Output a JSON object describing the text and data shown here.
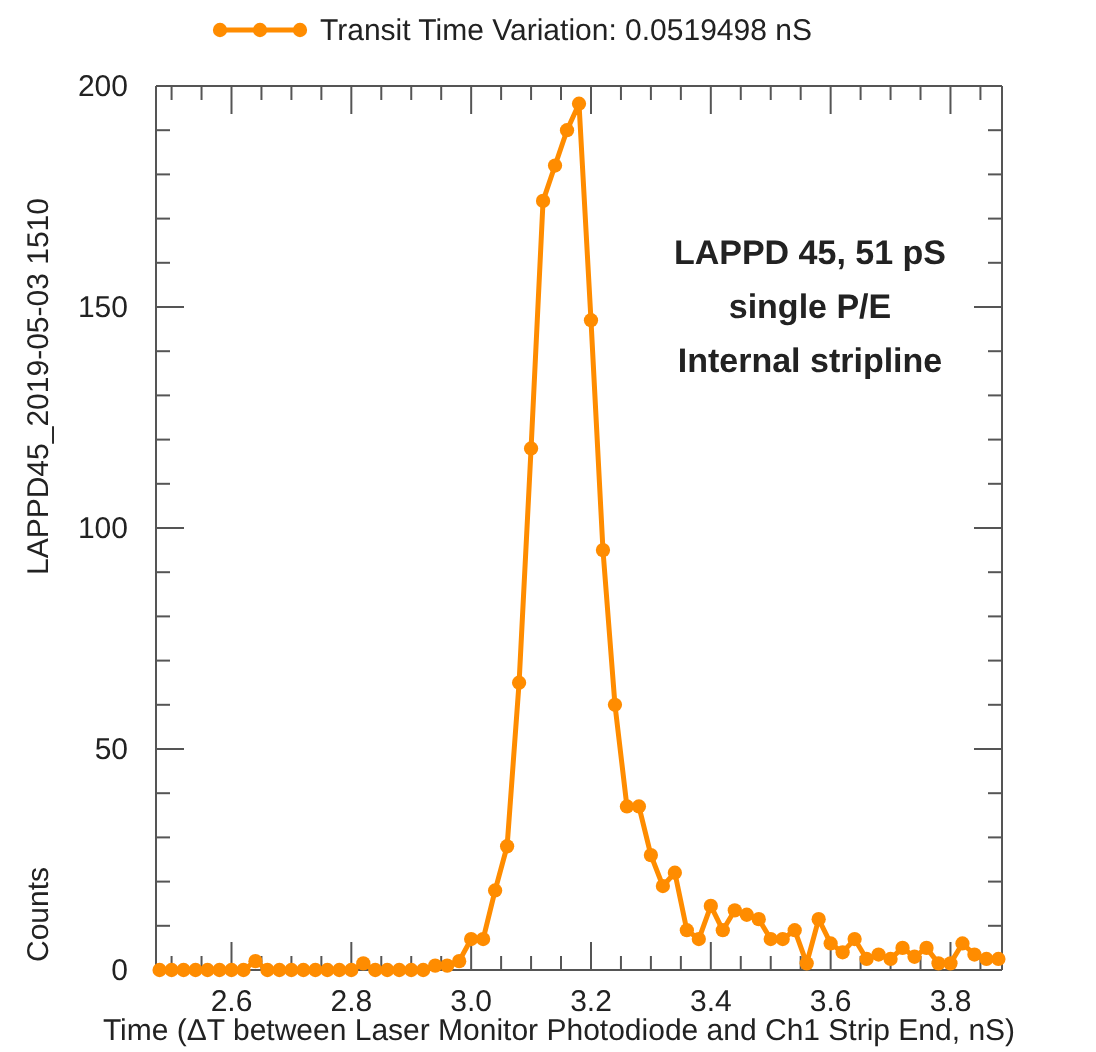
{
  "chart_data": {
    "type": "line",
    "xlabel": "Time (ΔT between Laser Monitor Photodiode and Ch1 Strip End, nS)",
    "ylabel": "Counts",
    "annotations": [
      "LAPPD45_2019-05-03  1510",
      "LAPPD 45, 51 pS\nsingle P/E\nInternal stripline"
    ],
    "x": [
      2.48,
      2.5,
      2.52,
      2.54,
      2.56,
      2.58,
      2.6,
      2.62,
      2.64,
      2.66,
      2.68,
      2.7,
      2.72,
      2.74,
      2.76,
      2.78,
      2.8,
      2.82,
      2.84,
      2.86,
      2.88,
      2.9,
      2.92,
      2.94,
      2.96,
      2.98,
      3.0,
      3.02,
      3.04,
      3.06,
      3.08,
      3.1,
      3.12,
      3.14,
      3.16,
      3.18,
      3.2,
      3.22,
      3.24,
      3.26,
      3.28,
      3.3,
      3.32,
      3.34,
      3.36,
      3.38,
      3.4,
      3.42,
      3.44,
      3.46,
      3.48,
      3.5,
      3.52,
      3.54,
      3.56,
      3.58,
      3.6,
      3.62,
      3.64,
      3.66,
      3.68,
      3.7,
      3.72,
      3.74,
      3.76,
      3.78,
      3.8,
      3.82,
      3.84,
      3.86,
      3.88
    ],
    "series": [
      {
        "name": "Transit Time Variation: 0.0519498 nS",
        "color": "#ff8c00",
        "values": [
          0,
          0,
          0,
          0,
          0,
          0,
          0,
          0,
          2,
          0,
          0,
          0,
          0,
          0,
          0,
          0,
          0,
          1.5,
          0,
          0,
          0,
          0,
          0,
          1,
          1,
          2,
          7,
          7,
          18,
          28,
          65,
          118,
          174,
          182,
          190,
          196,
          147,
          95,
          60,
          37,
          37,
          26,
          19,
          22,
          9,
          7,
          14.5,
          9,
          13.5,
          12.5,
          11.5,
          7,
          7,
          9,
          1.5,
          11.5,
          6,
          4,
          7,
          2.5,
          3.5,
          2.5,
          5,
          3,
          5,
          1.5,
          1.5,
          6,
          3.5,
          2.5,
          2.5
        ]
      }
    ],
    "xlim": [
      2.474,
      3.886
    ],
    "ylim": [
      0,
      200
    ],
    "xticks": [
      {
        "value": 2.5,
        "label": null
      },
      {
        "value": 2.55,
        "label": null
      },
      2.6,
      {
        "value": 2.65,
        "label": null
      },
      {
        "value": 2.7,
        "label": null
      },
      {
        "value": 2.75,
        "label": null
      },
      2.8,
      {
        "value": 2.85,
        "label": null
      },
      {
        "value": 2.9,
        "label": null
      },
      {
        "value": 2.95,
        "label": null
      },
      {
        "value": 3.0,
        "label": "3.0"
      },
      {
        "value": 3.05,
        "label": null
      },
      {
        "value": 3.1,
        "label": null
      },
      {
        "value": 3.15,
        "label": null
      },
      3.2,
      {
        "value": 3.25,
        "label": null
      },
      {
        "value": 3.3,
        "label": null
      },
      {
        "value": 3.35,
        "label": null
      },
      3.4,
      {
        "value": 3.45,
        "label": null
      },
      {
        "value": 3.5,
        "label": null
      },
      {
        "value": 3.55,
        "label": null
      },
      3.6,
      {
        "value": 3.65,
        "label": null
      },
      {
        "value": 3.7,
        "label": null
      },
      {
        "value": 3.75,
        "label": null
      },
      3.8,
      {
        "value": 3.85,
        "label": null
      }
    ],
    "yticks": [
      0,
      {
        "value": 10,
        "label": null
      },
      {
        "value": 20,
        "label": null
      },
      {
        "value": 30,
        "label": null
      },
      {
        "value": 40,
        "label": null
      },
      50,
      {
        "value": 60,
        "label": null
      },
      {
        "value": 70,
        "label": null
      },
      {
        "value": 80,
        "label": null
      },
      {
        "value": 90,
        "label": null
      },
      100,
      {
        "value": 110,
        "label": null
      },
      {
        "value": 120,
        "label": null
      },
      {
        "value": 130,
        "label": null
      },
      {
        "value": 140,
        "label": null
      },
      150,
      {
        "value": 160,
        "label": null
      },
      {
        "value": 170,
        "label": null
      },
      {
        "value": 180,
        "label": null
      },
      {
        "value": 190,
        "label": null
      },
      200
    ],
    "grid": false,
    "legend": "top",
    "marker": "circle",
    "line_style": "solid"
  }
}
